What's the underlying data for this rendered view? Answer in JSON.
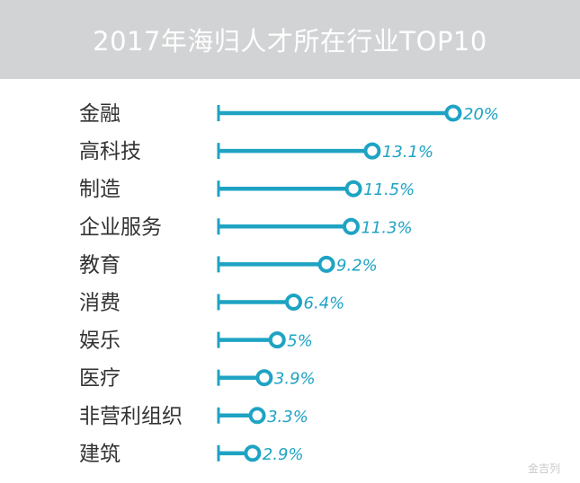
{
  "chart_data": {
    "type": "bar",
    "title": "2017年海归人才所在行业TOP10",
    "categories": [
      "金融",
      "高科技",
      "制造",
      "企业服务",
      "教育",
      "消费",
      "娱乐",
      "医疗",
      "非营利组织",
      "建筑"
    ],
    "values": [
      20,
      13.1,
      11.5,
      11.3,
      9.2,
      6.4,
      5,
      3.9,
      3.3,
      2.9
    ],
    "value_labels": [
      "20%",
      "13.1%",
      "11.5%",
      "11.3%",
      "9.2%",
      "6.4%",
      "5%",
      "3.9%",
      "3.3%",
      "2.9%"
    ],
    "orientation": "horizontal",
    "style": "lollipop",
    "grid": false,
    "colors": {
      "bar": "#1ea3c3",
      "title_bg": "#d2d3d4",
      "title_text": "#ffffff",
      "label": "#333333"
    }
  },
  "watermark": "金吉列"
}
